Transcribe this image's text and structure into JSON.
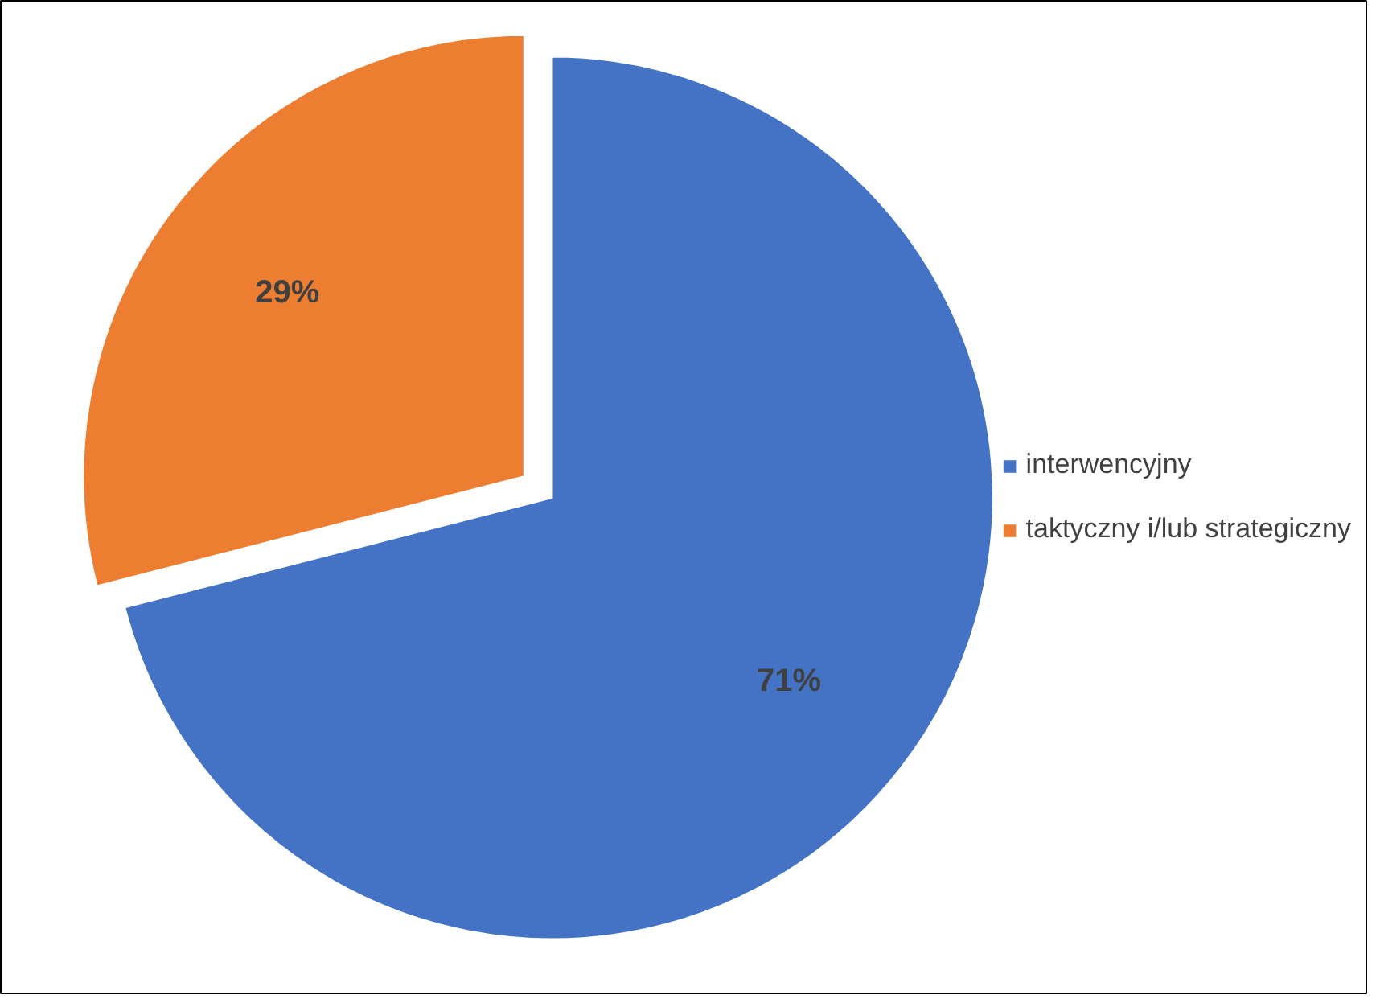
{
  "chart_data": {
    "type": "pie",
    "categories": [
      "interwencyjny",
      "taktyczny i/lub strategiczny"
    ],
    "values": [
      71,
      29
    ],
    "value_labels": [
      "71%",
      "29%"
    ],
    "colors": [
      "#4472c4",
      "#ed7d31"
    ],
    "legend": "right"
  }
}
